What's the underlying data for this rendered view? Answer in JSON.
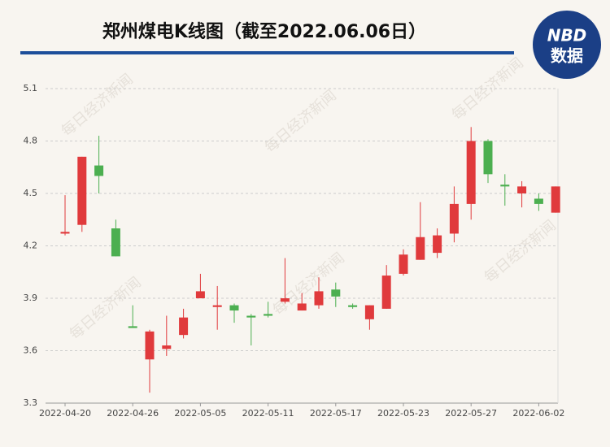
{
  "chart_data": {
    "type": "candlestick",
    "title": "郑州煤电K线图（截至2022.06.06日）",
    "logo": {
      "top": "NBD",
      "bottom": "数据"
    },
    "watermark": "每日经济新闻",
    "categories": [
      "2022-04-20",
      null,
      null,
      null,
      "2022-04-26",
      null,
      null,
      null,
      "2022-05-05",
      null,
      null,
      null,
      "2022-05-11",
      null,
      null,
      null,
      "2022-05-17",
      null,
      null,
      null,
      "2022-05-23",
      null,
      null,
      null,
      "2022-05-27",
      null,
      null,
      null,
      "2022-06-02",
      null
    ],
    "open": [
      4.27,
      4.32,
      4.66,
      4.3,
      3.74,
      3.55,
      3.61,
      3.69,
      3.9,
      3.85,
      3.86,
      3.8,
      3.81,
      3.88,
      3.83,
      3.86,
      3.95,
      3.86,
      3.78,
      3.84,
      4.04,
      4.12,
      4.16,
      4.27,
      4.44,
      4.8,
      4.55,
      4.5,
      4.47,
      4.39
    ],
    "high": [
      4.49,
      4.71,
      4.83,
      4.35,
      3.86,
      3.72,
      3.8,
      3.84,
      4.04,
      3.97,
      3.87,
      3.81,
      3.88,
      4.13,
      3.93,
      4.02,
      3.99,
      3.87,
      3.86,
      4.09,
      4.18,
      4.45,
      4.3,
      4.54,
      4.88,
      4.81,
      4.61,
      4.57,
      4.5,
      4.54
    ],
    "low": [
      4.26,
      4.28,
      4.5,
      4.14,
      3.73,
      3.36,
      3.57,
      3.67,
      3.9,
      3.72,
      3.76,
      3.63,
      3.79,
      3.87,
      3.83,
      3.84,
      3.85,
      3.84,
      3.72,
      3.84,
      4.03,
      4.12,
      4.13,
      4.22,
      4.35,
      4.56,
      4.43,
      4.42,
      4.4,
      4.39
    ],
    "close": [
      4.28,
      4.71,
      4.6,
      4.14,
      3.73,
      3.71,
      3.63,
      3.79,
      3.94,
      3.86,
      3.83,
      3.79,
      3.8,
      3.9,
      3.87,
      3.94,
      3.91,
      3.85,
      3.86,
      4.03,
      4.15,
      4.25,
      4.26,
      4.44,
      4.8,
      4.61,
      4.54,
      4.54,
      4.44,
      4.54
    ],
    "up_color": "#e03a3c",
    "down_color": "#4caf50",
    "ylim": [
      3.3,
      5.1
    ],
    "yticks": [
      3.3,
      3.6,
      3.9,
      4.2,
      4.5,
      4.8,
      5.1
    ],
    "grid": true
  }
}
